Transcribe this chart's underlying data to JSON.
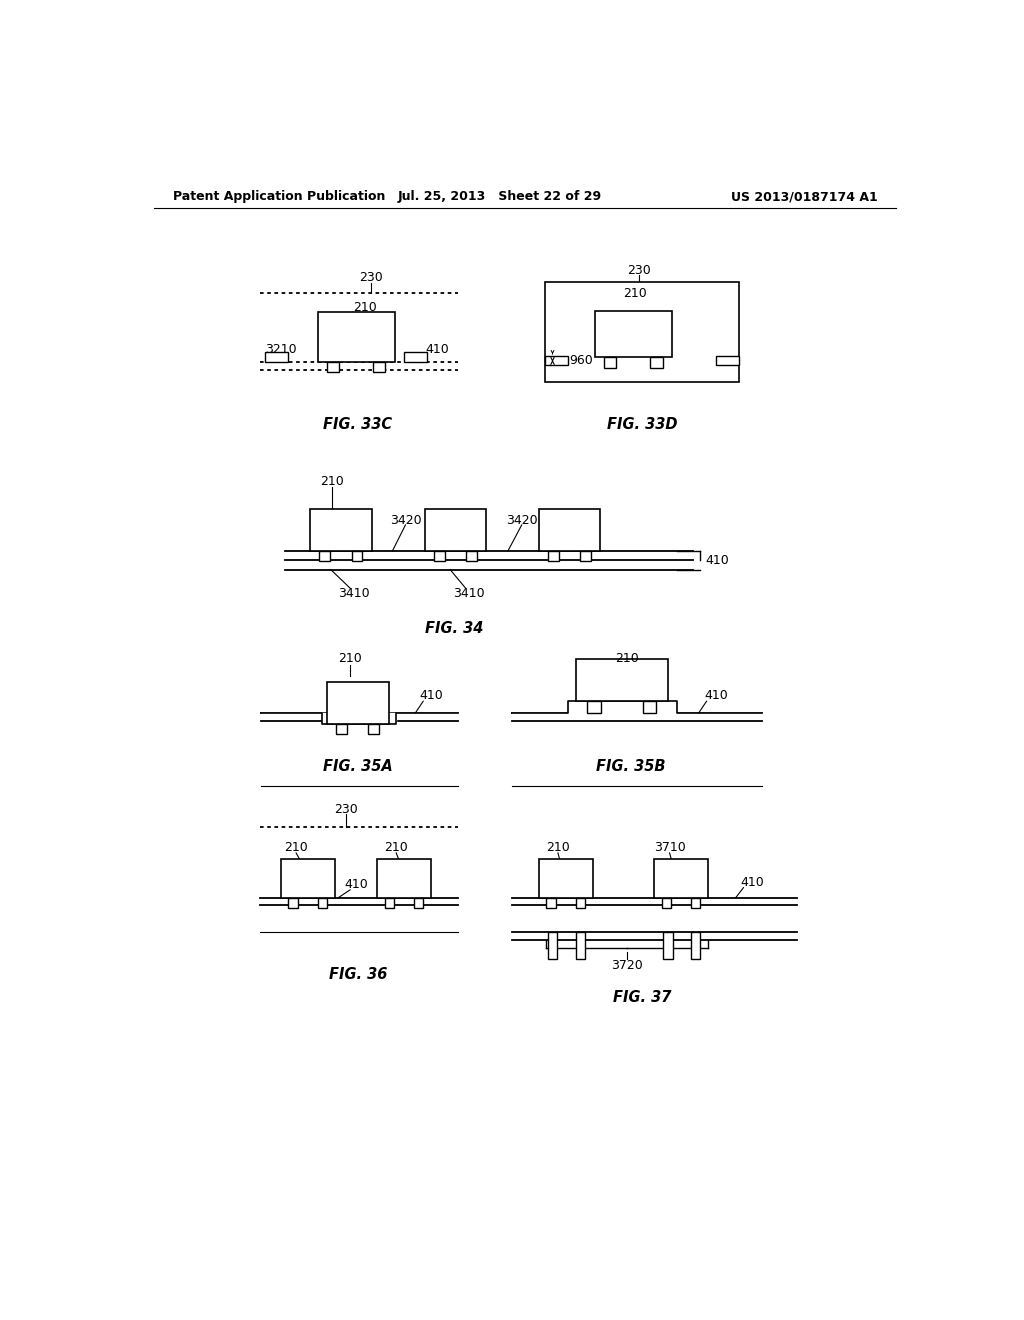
{
  "header_left": "Patent Application Publication",
  "header_mid": "Jul. 25, 2013   Sheet 22 of 29",
  "header_right": "US 2013/0187174 A1",
  "bg_color": "#ffffff"
}
